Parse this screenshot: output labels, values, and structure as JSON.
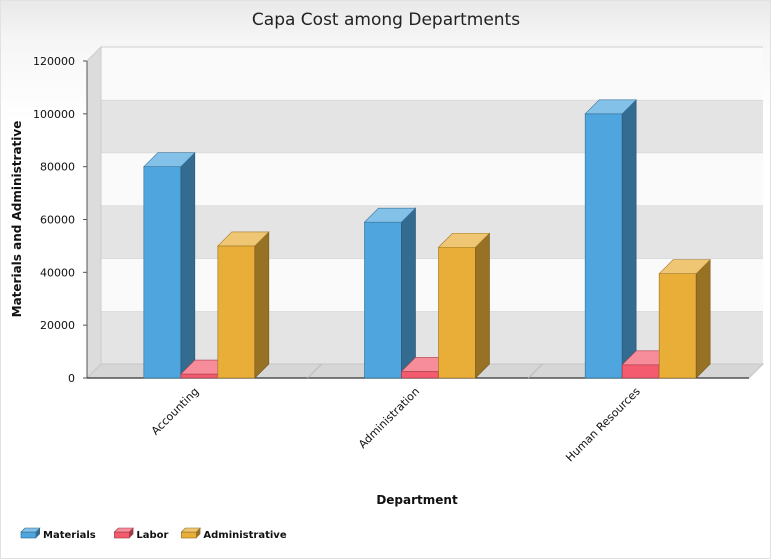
{
  "chart_data": {
    "type": "bar",
    "title": "Capa Cost among Departments",
    "xlabel": "Department",
    "ylabel": "Materials and Administrative",
    "categories": [
      "Accounting",
      "Administration",
      "Human Resources"
    ],
    "series": [
      {
        "name": "Materials",
        "values": [
          80000,
          59000,
          100000
        ],
        "color": "#4fa6de"
      },
      {
        "name": "Labor",
        "values": [
          1500,
          2500,
          5000
        ],
        "color": "#f45b6e"
      },
      {
        "name": "Administrative",
        "values": [
          50000,
          49500,
          39500
        ],
        "color": "#e8ae38"
      }
    ],
    "ylim": [
      0,
      120000
    ],
    "yticks": [
      0,
      20000,
      40000,
      60000,
      80000,
      100000,
      120000
    ],
    "grid": true,
    "legend": "bottom-left",
    "projection": "3d"
  }
}
